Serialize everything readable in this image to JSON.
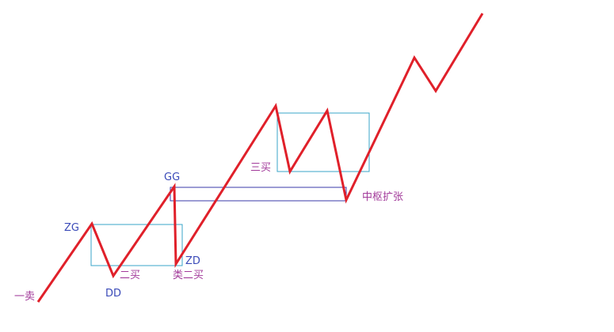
{
  "diagram": {
    "colors": {
      "stroke_line": "#e0202a",
      "pivot_box": "#3aa6c8",
      "expansion_box": "#3a3aa8",
      "label_blue": "#3a4ab8",
      "label_purple": "#a23a9a",
      "background": "#ffffff"
    },
    "labels": {
      "first_sell": "一卖",
      "zg": "ZG",
      "dd": "DD",
      "second_buy": "二买",
      "gg": "GG",
      "zd": "ZD",
      "quasi_second_buy": "类二买",
      "third_buy": "三买",
      "pivot_expansion": "中枢扩张"
    }
  }
}
